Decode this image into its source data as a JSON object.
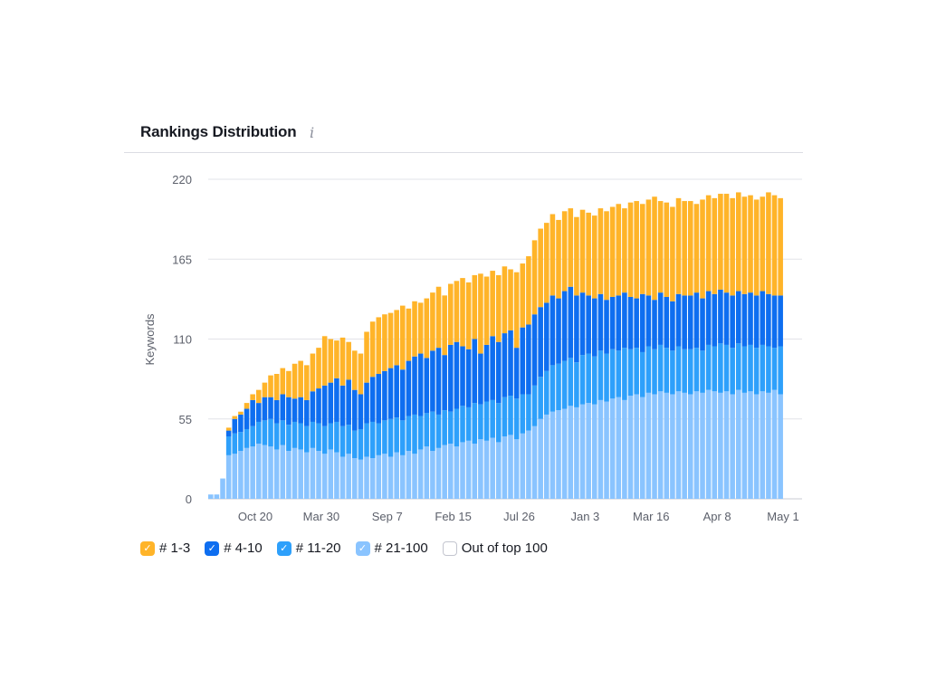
{
  "header": {
    "title": "Rankings Distribution",
    "info_icon": "info-icon"
  },
  "legend": [
    {
      "label": "# 1-3",
      "color": "#ffb429",
      "checked": true
    },
    {
      "label": "# 4-10",
      "color": "#0e6ef0",
      "checked": true
    },
    {
      "label": "# 11-20",
      "color": "#2ea0fb",
      "checked": true
    },
    {
      "label": "# 21-100",
      "color": "#8ac4ff",
      "checked": true
    },
    {
      "label": "Out of top 100",
      "color": "#ffffff",
      "checked": false
    }
  ],
  "chart_data": {
    "type": "bar",
    "stacked": true,
    "title": "Rankings Distribution",
    "xlabel": "",
    "ylabel": "Keywords",
    "ylim": [
      0,
      220
    ],
    "yticks": [
      0,
      55,
      110,
      165,
      220
    ],
    "xtick_labels": [
      "Oct 20",
      "Mar 30",
      "Sep 7",
      "Feb 15",
      "Jul 26",
      "Jan 3",
      "Mar 16",
      "Apr 8",
      "May 1"
    ],
    "grid": true,
    "legend_position": "bottom-left",
    "series": [
      {
        "name": "# 21-100",
        "color": "#8ac4ff",
        "values": [
          3,
          3,
          14,
          30,
          31,
          33,
          35,
          36,
          38,
          37,
          36,
          34,
          37,
          33,
          35,
          34,
          32,
          35,
          33,
          31,
          34,
          32,
          29,
          31,
          28,
          27,
          29,
          28,
          30,
          31,
          29,
          32,
          30,
          33,
          31,
          34,
          36,
          33,
          35,
          37,
          38,
          36,
          39,
          40,
          38,
          41,
          40,
          42,
          39,
          43,
          44,
          41,
          45,
          47,
          50,
          55,
          58,
          60,
          61,
          62,
          64,
          63,
          65,
          66,
          65,
          68,
          67,
          69,
          70,
          68,
          71,
          72,
          70,
          73,
          72,
          74,
          73,
          72,
          74,
          73,
          72,
          74,
          73,
          75,
          74,
          73,
          74,
          72,
          75,
          73,
          74,
          72,
          74,
          73,
          75,
          72
        ]
      },
      {
        "name": "# 11-20",
        "color": "#2ea0fb",
        "values": [
          0,
          0,
          0,
          13,
          14,
          13,
          13,
          14,
          15,
          17,
          19,
          18,
          17,
          18,
          18,
          18,
          18,
          18,
          19,
          19,
          18,
          21,
          21,
          20,
          19,
          21,
          23,
          25,
          22,
          23,
          26,
          24,
          24,
          24,
          27,
          23,
          23,
          27,
          23,
          24,
          22,
          26,
          25,
          23,
          28,
          24,
          27,
          26,
          27,
          27,
          27,
          28,
          27,
          25,
          28,
          29,
          30,
          32,
          32,
          33,
          33,
          31,
          34,
          34,
          33,
          34,
          33,
          34,
          32,
          36,
          32,
          32,
          31,
          32,
          31,
          32,
          31,
          30,
          31,
          30,
          31,
          30,
          29,
          31,
          31,
          34,
          32,
          32,
          32,
          32,
          32,
          32,
          32,
          32,
          29,
          33
        ]
      },
      {
        "name": "# 4-10",
        "color": "#0e6ef0",
        "values": [
          0,
          0,
          0,
          4,
          10,
          12,
          14,
          18,
          13,
          16,
          15,
          16,
          18,
          19,
          16,
          18,
          18,
          21,
          24,
          28,
          28,
          30,
          28,
          31,
          28,
          24,
          28,
          31,
          34,
          34,
          35,
          36,
          35,
          38,
          40,
          43,
          38,
          42,
          46,
          38,
          46,
          46,
          41,
          40,
          44,
          35,
          39,
          44,
          42,
          44,
          45,
          35,
          46,
          48,
          49,
          48,
          47,
          48,
          45,
          48,
          49,
          46,
          43,
          40,
          40,
          39,
          37,
          36,
          38,
          38,
          36,
          34,
          40,
          35,
          34,
          36,
          35,
          34,
          36,
          37,
          37,
          38,
          36,
          37,
          36,
          37,
          36,
          36,
          36,
          36,
          36,
          36,
          37,
          36,
          36,
          35
        ]
      },
      {
        "name": "# 1-3",
        "color": "#ffb429",
        "values": [
          0,
          0,
          0,
          2,
          2,
          2,
          4,
          4,
          9,
          10,
          15,
          18,
          18,
          18,
          24,
          25,
          24,
          26,
          28,
          34,
          30,
          26,
          33,
          26,
          27,
          28,
          35,
          38,
          39,
          39,
          38,
          38,
          44,
          36,
          38,
          35,
          41,
          40,
          42,
          41,
          42,
          42,
          47,
          46,
          44,
          55,
          47,
          45,
          46,
          46,
          42,
          52,
          44,
          47,
          51,
          54,
          55,
          56,
          54,
          55,
          54,
          54,
          57,
          57,
          57,
          59,
          61,
          62,
          63,
          58,
          65,
          67,
          62,
          66,
          71,
          63,
          65,
          65,
          66,
          65,
          65,
          61,
          68,
          66,
          66,
          66,
          68,
          67,
          68,
          67,
          67,
          66,
          65,
          70,
          69,
          67
        ]
      }
    ]
  }
}
